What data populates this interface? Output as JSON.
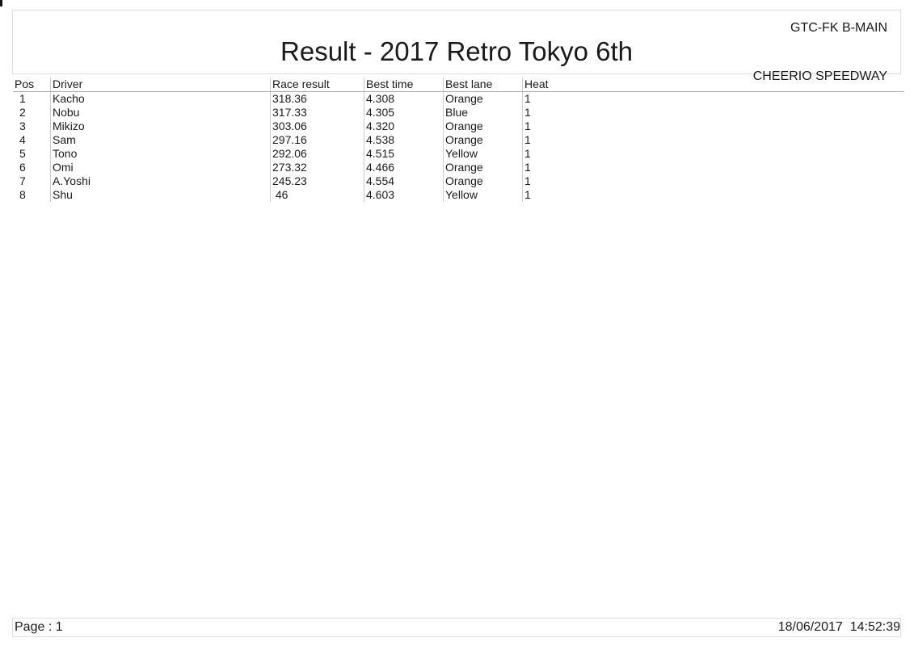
{
  "header": {
    "event": "GTC-FK B-MAIN",
    "title": "Result - 2017 Retro Tokyo 6th",
    "venue": "CHEERIO SPEEDWAY"
  },
  "table": {
    "columns": [
      "Pos",
      "Driver",
      "Race result",
      "Best time",
      "Best lane",
      "Heat"
    ],
    "rows": [
      [
        "1",
        "Kacho",
        "318.36",
        "4.308",
        "Orange",
        "1"
      ],
      [
        "2",
        "Nobu",
        "317.33",
        "4.305",
        "Blue",
        "1"
      ],
      [
        "3",
        "Mikizo",
        "303.06",
        "4.320",
        "Orange",
        "1"
      ],
      [
        "4",
        "Sam",
        "297.16",
        "4.538",
        "Orange",
        "1"
      ],
      [
        "5",
        "Tono",
        "292.06",
        "4.515",
        "Yellow",
        "1"
      ],
      [
        "6",
        "Omi",
        "273.32",
        "4.466",
        "Orange",
        "1"
      ],
      [
        "7",
        "A.Yoshi",
        "245.23",
        "4.554",
        "Orange",
        "1"
      ],
      [
        "8",
        "Shu",
        " 46",
        "4.603",
        "Yellow",
        "1"
      ]
    ]
  },
  "footer": {
    "page": "Page : 1",
    "timestamp": "18/06/2017  14:52:39"
  }
}
